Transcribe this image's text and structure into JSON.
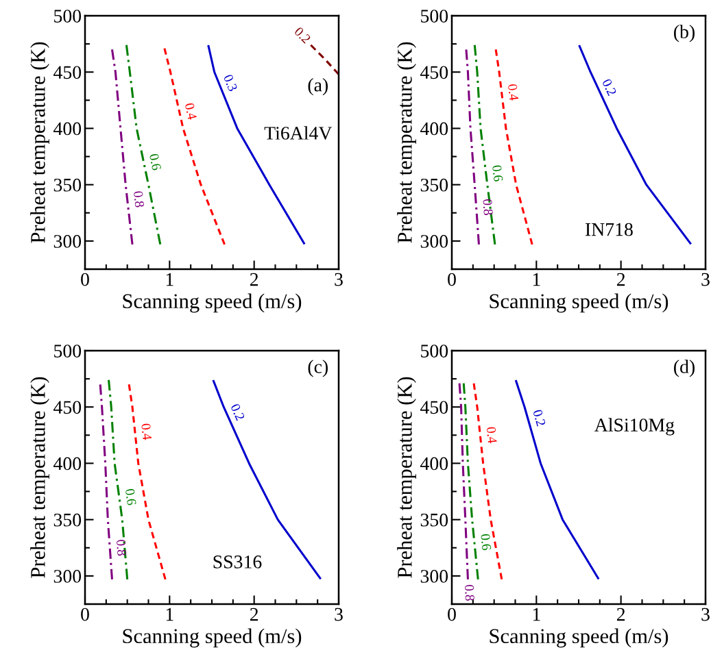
{
  "chart_data": [
    {
      "type": "line",
      "xlabel": "Scanning speed (m/s)",
      "ylabel": "Preheat temperature (K)",
      "xlim": [
        0,
        3
      ],
      "ylim": [
        275,
        500
      ],
      "xticks": [
        0,
        1,
        2,
        3
      ],
      "yticks": [
        300,
        350,
        400,
        450,
        500
      ],
      "annotations": [
        "(a)",
        "Ti6Al4V"
      ],
      "series": [
        {
          "name": "0.8",
          "color": "#800080",
          "line_style": "dashdot",
          "x": [
            0.32,
            0.36,
            0.42,
            0.48,
            0.56
          ],
          "values": [
            470,
            450,
            400,
            350,
            297
          ]
        },
        {
          "name": "0.6",
          "color": "#008000",
          "line_style": "dashdot",
          "x": [
            0.49,
            0.53,
            0.61,
            0.75,
            0.89
          ],
          "values": [
            474,
            450,
            400,
            350,
            297
          ]
        },
        {
          "name": "0.4",
          "color": "#ff0000",
          "line_style": "dashed",
          "x": [
            0.94,
            1.01,
            1.16,
            1.37,
            1.65
          ],
          "values": [
            471,
            450,
            400,
            350,
            297
          ]
        },
        {
          "name": "0.3",
          "color": "#0000cc",
          "line_style": "solid",
          "x": [
            1.46,
            1.53,
            1.8,
            2.18,
            2.59
          ],
          "values": [
            473,
            450,
            400,
            350,
            298
          ]
        },
        {
          "name": "0.2",
          "color": "#800000",
          "line_style": "dashed",
          "x": [
            2.67,
            2.83,
            3.0
          ],
          "values": [
            474,
            462,
            448
          ]
        }
      ]
    },
    {
      "type": "line",
      "xlabel": "Scanning speed (m/s)",
      "ylabel": "Preheat temperature (K)",
      "xlim": [
        0,
        3
      ],
      "ylim": [
        275,
        500
      ],
      "xticks": [
        0,
        1,
        2,
        3
      ],
      "yticks": [
        300,
        350,
        400,
        450,
        500
      ],
      "annotations": [
        "(b)",
        "IN718"
      ],
      "series": [
        {
          "name": "0.8",
          "color": "#800080",
          "line_style": "dashdot",
          "x": [
            0.17,
            0.19,
            0.22,
            0.27,
            0.32
          ],
          "values": [
            470,
            450,
            400,
            350,
            297
          ]
        },
        {
          "name": "0.6",
          "color": "#008000",
          "line_style": "dashdot",
          "x": [
            0.27,
            0.3,
            0.34,
            0.42,
            0.51
          ],
          "values": [
            474,
            450,
            400,
            350,
            297
          ]
        },
        {
          "name": "0.4",
          "color": "#ff0000",
          "line_style": "dashed",
          "x": [
            0.52,
            0.56,
            0.64,
            0.76,
            0.95
          ],
          "values": [
            470,
            450,
            400,
            350,
            297
          ]
        },
        {
          "name": "0.2",
          "color": "#0000cc",
          "line_style": "solid",
          "x": [
            1.51,
            1.64,
            1.95,
            2.3,
            2.82
          ],
          "values": [
            473,
            450,
            400,
            350,
            298
          ]
        }
      ]
    },
    {
      "type": "line",
      "xlabel": "Scanning speed (m/s)",
      "ylabel": "Preheat temperature (K)",
      "xlim": [
        0,
        3
      ],
      "ylim": [
        275,
        500
      ],
      "xticks": [
        0,
        1,
        2,
        3
      ],
      "yticks": [
        300,
        350,
        400,
        450,
        500
      ],
      "annotations": [
        "(c)",
        "SS316"
      ],
      "series": [
        {
          "name": "0.8",
          "color": "#800080",
          "line_style": "dashdot",
          "x": [
            0.18,
            0.2,
            0.24,
            0.27,
            0.32
          ],
          "values": [
            470,
            450,
            400,
            350,
            297
          ]
        },
        {
          "name": "0.6",
          "color": "#008000",
          "line_style": "dashdot",
          "x": [
            0.28,
            0.31,
            0.35,
            0.44,
            0.5
          ],
          "values": [
            474,
            450,
            400,
            350,
            297
          ]
        },
        {
          "name": "0.4",
          "color": "#ff0000",
          "line_style": "dashed",
          "x": [
            0.52,
            0.56,
            0.63,
            0.75,
            0.95
          ],
          "values": [
            470,
            450,
            400,
            350,
            297
          ]
        },
        {
          "name": "0.2",
          "color": "#0000cc",
          "line_style": "solid",
          "x": [
            1.52,
            1.64,
            1.94,
            2.28,
            2.78
          ],
          "values": [
            473,
            450,
            400,
            350,
            298
          ]
        }
      ]
    },
    {
      "type": "line",
      "xlabel": "Scanning speed (m/s)",
      "ylabel": "Preheat temperature (K)",
      "xlim": [
        0,
        3
      ],
      "ylim": [
        275,
        500
      ],
      "xticks": [
        0,
        1,
        2,
        3
      ],
      "yticks": [
        300,
        350,
        400,
        450,
        500
      ],
      "annotations": [
        "(d)",
        "AlSi10Mg"
      ],
      "series": [
        {
          "name": "0.8",
          "color": "#800080",
          "line_style": "dashdot",
          "x": [
            0.09,
            0.11,
            0.13,
            0.16,
            0.19
          ],
          "values": [
            471,
            450,
            400,
            350,
            297
          ]
        },
        {
          "name": "0.6",
          "color": "#008000",
          "line_style": "dashdot",
          "x": [
            0.14,
            0.16,
            0.19,
            0.24,
            0.31
          ],
          "values": [
            471,
            450,
            400,
            350,
            297
          ]
        },
        {
          "name": "0.4",
          "color": "#ff0000",
          "line_style": "dashed",
          "x": [
            0.26,
            0.3,
            0.37,
            0.46,
            0.59
          ],
          "values": [
            471,
            450,
            400,
            350,
            297
          ]
        },
        {
          "name": "0.2",
          "color": "#0000cc",
          "line_style": "solid",
          "x": [
            0.76,
            0.86,
            1.05,
            1.31,
            1.73
          ],
          "values": [
            473,
            450,
            400,
            350,
            298
          ]
        }
      ]
    }
  ]
}
